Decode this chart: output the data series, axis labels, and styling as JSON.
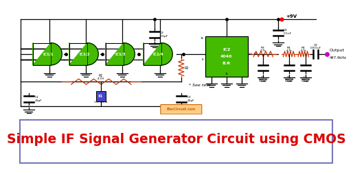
{
  "title": "Simple IF Signal Generator Circuit using CMOS",
  "title_color": "#dd0000",
  "title_fontsize": 13.5,
  "title_box_edge_color": "#7777bb",
  "bg_color": "#ffffff",
  "watermark": "ElecCircuit.com",
  "watermark_color": "#cc6600",
  "watermark_bg": "#ffcc88",
  "supply_label": "+9V",
  "output_label1": "Output",
  "output_label2": "447.4kHz",
  "see_text": "* See text",
  "gate_color": "#44bb00",
  "gate_label_color": "#ffffff",
  "wire_color": "#000000",
  "resistor_color": "#cc3300",
  "inductor_color": "#0000cc",
  "output_dot_color": "#cc00cc",
  "supply_dot_color": "#ff0000",
  "node_dot_color": "#000000"
}
